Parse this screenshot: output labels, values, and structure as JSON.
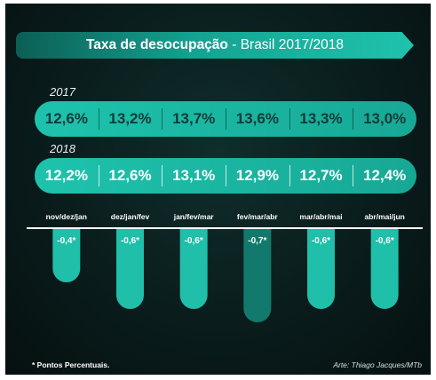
{
  "title": {
    "main": "Taxa de desocupação",
    "separator": " - ",
    "sub": "Brasil 2017/2018"
  },
  "rows": [
    {
      "year": "2017",
      "values": [
        "12,6%",
        "13,2%",
        "13,7%",
        "13,6%",
        "13,3%",
        "13,0%"
      ]
    },
    {
      "year": "2018",
      "values": [
        "12,2%",
        "12,6%",
        "13,1%",
        "12,9%",
        "12,7%",
        "12,4%"
      ]
    }
  ],
  "chart_data": {
    "type": "bar",
    "categories": [
      "nov/dez/jan",
      "dez/jan/fev",
      "jan/fev/mar",
      "fev/mar/abr",
      "mar/abr/mai",
      "abr/mai/jun"
    ],
    "values": [
      -0.4,
      -0.6,
      -0.6,
      -0.7,
      -0.6,
      -0.6
    ],
    "labels": [
      "-0,4*",
      "-0,6*",
      "-0,6*",
      "-0,7*",
      "-0,6*",
      "-0,6*"
    ],
    "ylim": [
      -0.7,
      0
    ],
    "highlight_index": 3,
    "colors": {
      "bar": "#1fbfa9",
      "bar_highlight": "#127a6c",
      "axis": "#ffffff",
      "label": "#ffffff"
    }
  },
  "footnote": "* Pontos Percentuais.",
  "credit": "Arte: Thiago Jacques/MTb"
}
